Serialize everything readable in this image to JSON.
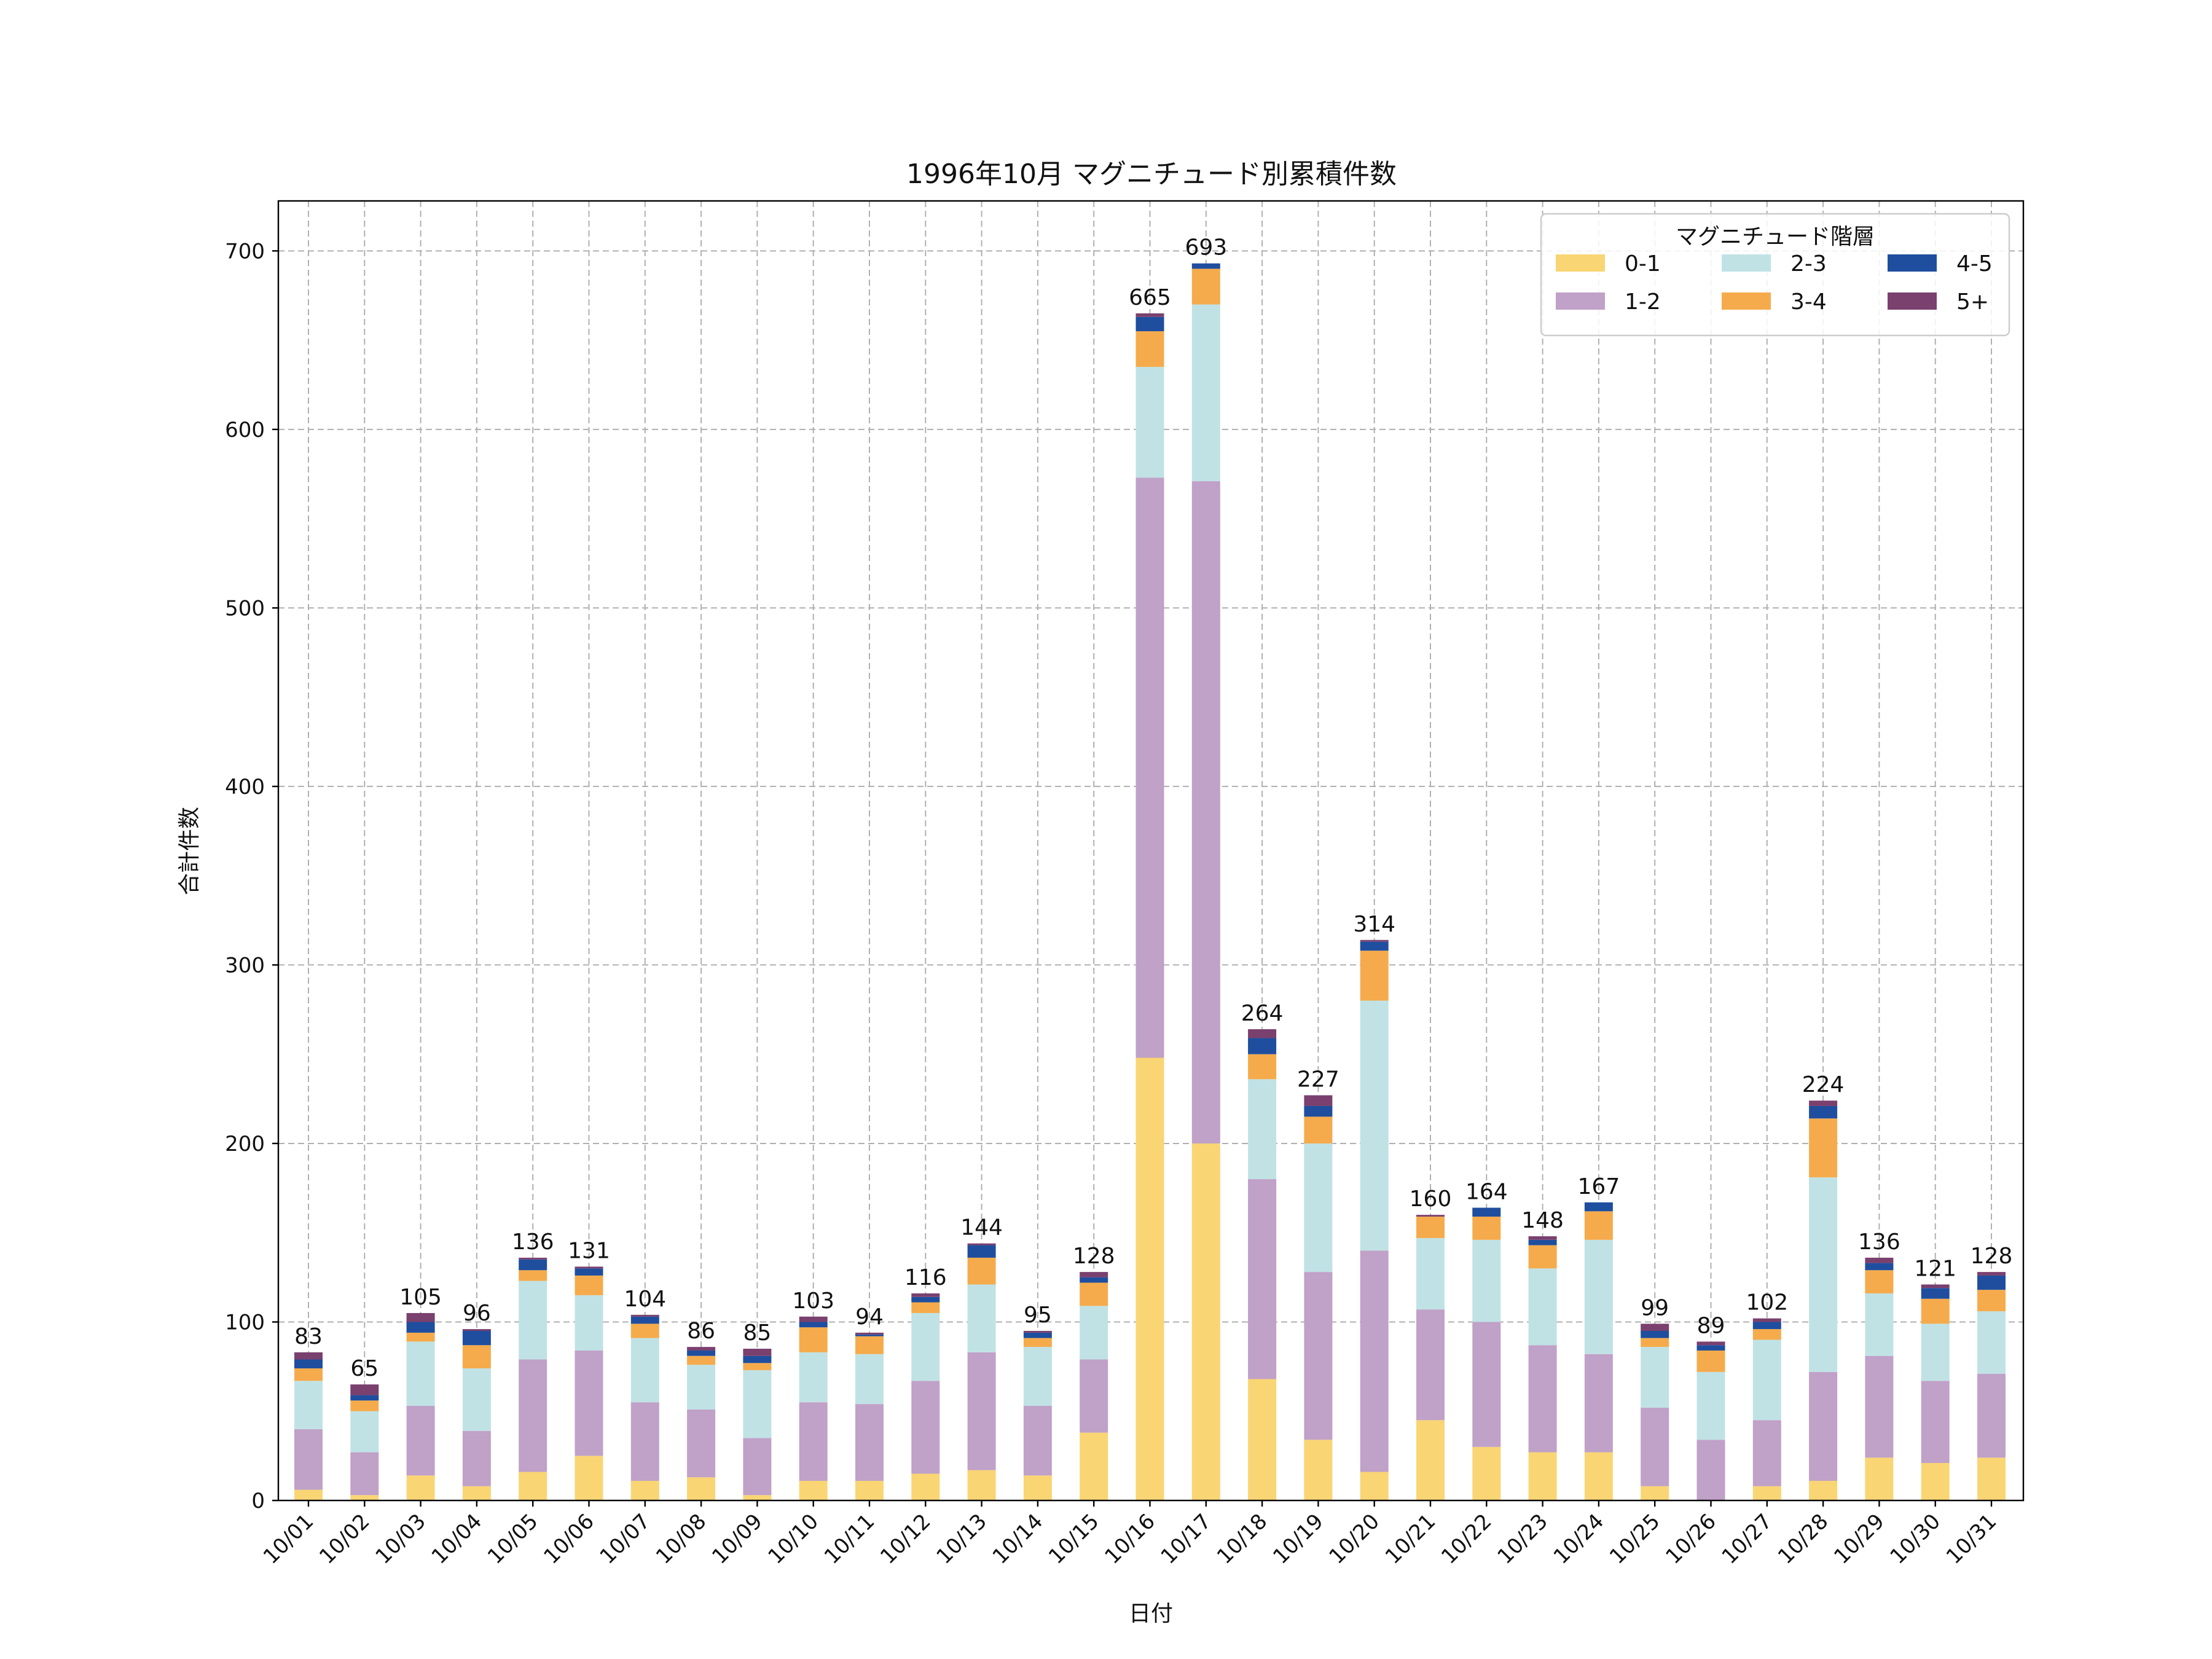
{
  "chart_data": {
    "type": "bar",
    "stacked": true,
    "title": "1996年10月 マグニチュード別累積件数",
    "xlabel": "日付",
    "ylabel": "合計件数",
    "ylim": [
      0,
      728
    ],
    "yticks": [
      0,
      100,
      200,
      300,
      400,
      500,
      600,
      700
    ],
    "grid": true,
    "legend": {
      "title": "マグニチュード階層",
      "placement": "top-right",
      "columns": 3
    },
    "categories": [
      "10/01",
      "10/02",
      "10/03",
      "10/04",
      "10/05",
      "10/06",
      "10/07",
      "10/08",
      "10/09",
      "10/10",
      "10/11",
      "10/12",
      "10/13",
      "10/14",
      "10/15",
      "10/16",
      "10/17",
      "10/18",
      "10/19",
      "10/20",
      "10/21",
      "10/22",
      "10/23",
      "10/24",
      "10/25",
      "10/26",
      "10/27",
      "10/28",
      "10/29",
      "10/30",
      "10/31"
    ],
    "series": [
      {
        "name": "0-1",
        "color": "#F9D574",
        "values": [
          6,
          3,
          14,
          8,
          16,
          25,
          11,
          13,
          3,
          11,
          11,
          15,
          17,
          14,
          38,
          248,
          200,
          68,
          34,
          16,
          45,
          30,
          27,
          27,
          8,
          0,
          8,
          11,
          24,
          21,
          24
        ]
      },
      {
        "name": "1-2",
        "color": "#C0A1C8",
        "values": [
          34,
          24,
          39,
          31,
          63,
          59,
          44,
          38,
          32,
          44,
          43,
          52,
          66,
          39,
          41,
          325,
          371,
          112,
          94,
          124,
          62,
          70,
          60,
          55,
          44,
          34,
          37,
          61,
          57,
          46,
          47
        ]
      },
      {
        "name": "2-3",
        "color": "#C0E2E5",
        "values": [
          27,
          23,
          36,
          35,
          44,
          31,
          36,
          25,
          38,
          28,
          28,
          38,
          38,
          33,
          30,
          62,
          99,
          56,
          72,
          140,
          40,
          46,
          43,
          64,
          34,
          38,
          45,
          109,
          35,
          32,
          35
        ]
      },
      {
        "name": "3-4",
        "color": "#F5AB4C",
        "values": [
          7,
          6,
          5,
          13,
          6,
          11,
          8,
          5,
          4,
          14,
          10,
          6,
          15,
          5,
          13,
          20,
          20,
          14,
          15,
          28,
          12,
          13,
          13,
          16,
          5,
          12,
          6,
          33,
          13,
          14,
          12
        ]
      },
      {
        "name": "4-5",
        "color": "#1F4E9E",
        "values": [
          5,
          3,
          6,
          8,
          6,
          4,
          4,
          3,
          4,
          3,
          1,
          3,
          7,
          3,
          3,
          8,
          3,
          9,
          6,
          5,
          0,
          5,
          3,
          5,
          4,
          3,
          4,
          7,
          4,
          6,
          8
        ]
      },
      {
        "name": "5+",
        "color": "#7A406E",
        "values": [
          4,
          6,
          5,
          1,
          1,
          1,
          1,
          2,
          4,
          3,
          1,
          2,
          1,
          1,
          3,
          2,
          0,
          5,
          6,
          1,
          1,
          0,
          2,
          0,
          4,
          2,
          2,
          3,
          3,
          2,
          2
        ]
      }
    ],
    "totals": [
      83,
      65,
      105,
      96,
      136,
      131,
      104,
      86,
      85,
      103,
      94,
      116,
      144,
      95,
      128,
      665,
      693,
      264,
      227,
      314,
      160,
      164,
      148,
      167,
      99,
      89,
      102,
      224,
      136,
      121,
      128
    ]
  }
}
